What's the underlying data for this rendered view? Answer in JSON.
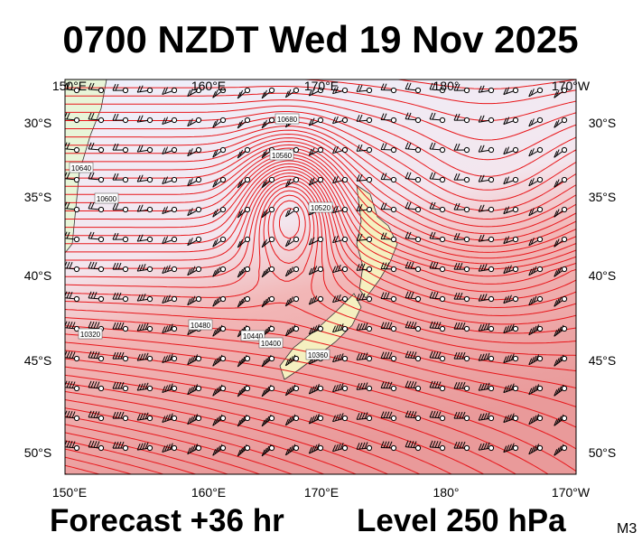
{
  "header": {
    "title": "0700 NZDT Wed 19 Nov 2025"
  },
  "map": {
    "lon_labels": [
      "150°E",
      "160°E",
      "170°E",
      "180°",
      "170°W"
    ],
    "lat_labels": [
      "30°S",
      "35°S",
      "40°S",
      "45°S",
      "50°S"
    ],
    "contour_labels": [
      "10680",
      "10640",
      "10600",
      "10560",
      "10520",
      "10480",
      "10440",
      "10400",
      "10360",
      "10320"
    ]
  },
  "footer": {
    "forecast": "Forecast +36 hr",
    "level": "Level 250 hPa",
    "code": "M3"
  }
}
